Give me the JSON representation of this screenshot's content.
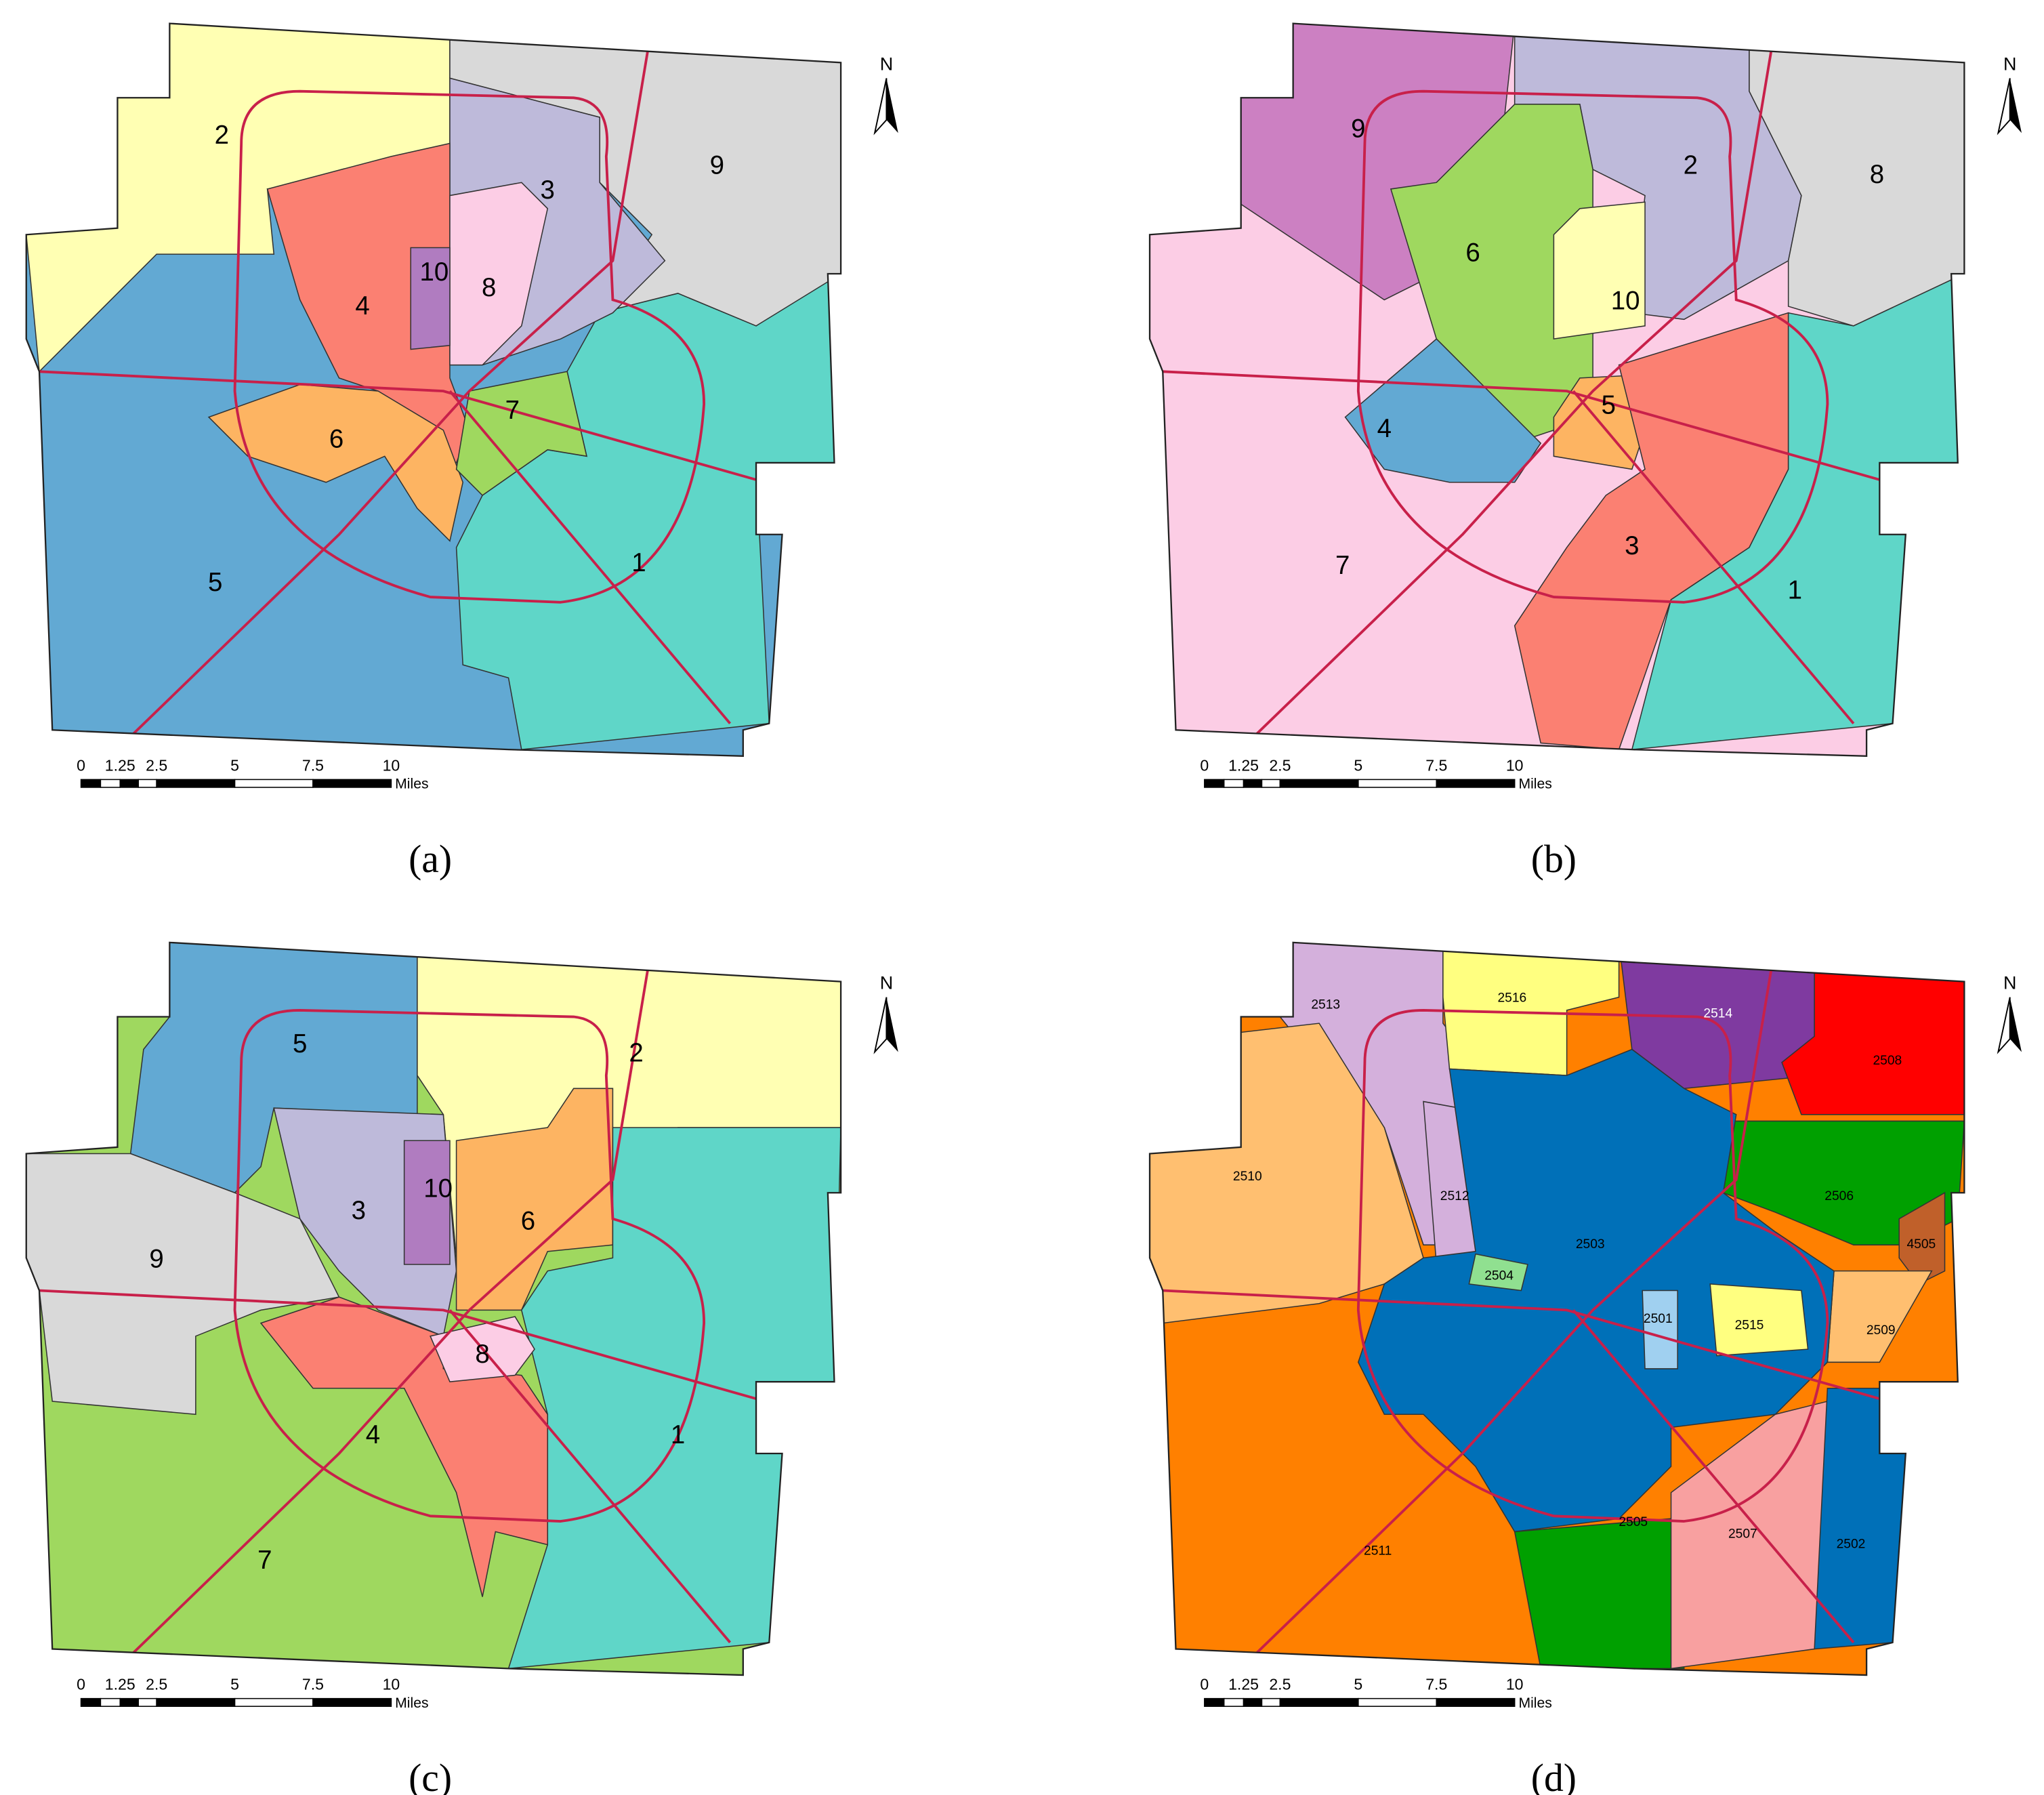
{
  "panels": [
    {
      "caption": "(a)",
      "north": "N",
      "scale_labels": [
        "0",
        "1.25",
        "2.5",
        "5",
        "7.5",
        "10"
      ],
      "scale_unit": "Miles",
      "regions": [
        {
          "label": "5",
          "color": "#62a9d3"
        },
        {
          "label": "1",
          "color": "#5fd6c8"
        },
        {
          "label": "2",
          "color": "#ffffb3"
        },
        {
          "label": "9",
          "color": "#d9d9d9"
        },
        {
          "label": "3",
          "color": "#bebada"
        },
        {
          "label": "4",
          "color": "#fb8072"
        },
        {
          "label": "6",
          "color": "#fdb462"
        },
        {
          "label": "7",
          "color": "#9fd85f"
        },
        {
          "label": "8",
          "color": "#fccde5"
        },
        {
          "label": "10",
          "color": "#b07cc0"
        }
      ]
    },
    {
      "caption": "(b)",
      "north": "N",
      "scale_labels": [
        "0",
        "1.25",
        "2.5",
        "5",
        "7.5",
        "10"
      ],
      "scale_unit": "Miles",
      "regions": [
        {
          "label": "7",
          "color": "#fccde5"
        },
        {
          "label": "9",
          "color": "#cc80c2"
        },
        {
          "label": "2",
          "color": "#bebada"
        },
        {
          "label": "8",
          "color": "#d9d9d9"
        },
        {
          "label": "6",
          "color": "#9fd85f"
        },
        {
          "label": "10",
          "color": "#ffffb3"
        },
        {
          "label": "5",
          "color": "#fdb462"
        },
        {
          "label": "4",
          "color": "#62a9d3"
        },
        {
          "label": "3",
          "color": "#fb8072"
        },
        {
          "label": "1",
          "color": "#5fd6c8"
        }
      ]
    },
    {
      "caption": "(c)",
      "north": "N",
      "scale_labels": [
        "0",
        "1.25",
        "2.5",
        "5",
        "7.5",
        "10"
      ],
      "scale_unit": "Miles",
      "regions": [
        {
          "label": "7",
          "color": "#9fd85f"
        },
        {
          "label": "5",
          "color": "#62a9d3"
        },
        {
          "label": "2",
          "color": "#ffffb3"
        },
        {
          "label": "3",
          "color": "#bebada"
        },
        {
          "label": "6",
          "color": "#fdb462"
        },
        {
          "label": "1",
          "color": "#5fd6c8"
        },
        {
          "label": "9",
          "color": "#d9d9d9"
        },
        {
          "label": "4",
          "color": "#fb8072"
        },
        {
          "label": "8",
          "color": "#fccde5"
        },
        {
          "label": "10",
          "color": "#b07cc0"
        }
      ]
    },
    {
      "caption": "(d)",
      "north": "N",
      "scale_labels": [
        "0",
        "1.25",
        "2.5",
        "5",
        "7.5",
        "10"
      ],
      "scale_unit": "Miles",
      "regions": [
        {
          "label": "2511",
          "color": "#ff8000"
        },
        {
          "label": "2513",
          "color": "#d4b0dc"
        },
        {
          "label": "2516",
          "color": "#ffff80"
        },
        {
          "label": "2514",
          "color": "#7f3aa0"
        },
        {
          "label": "2508",
          "color": "#ff0000"
        },
        {
          "label": "2506",
          "color": "#00a000"
        },
        {
          "label": "4505",
          "color": "#c0602a"
        },
        {
          "label": "2509",
          "color": "#ffbf70"
        },
        {
          "label": "2510",
          "color": "#ffbf70"
        },
        {
          "label": "2512",
          "color": "#d4b0dc"
        },
        {
          "label": "2503",
          "color": "#0070b8"
        },
        {
          "label": "2504",
          "color": "#90e090"
        },
        {
          "label": "2501",
          "color": "#a0d0f0"
        },
        {
          "label": "2515",
          "color": "#ffff80"
        },
        {
          "label": "2505",
          "color": "#00a000"
        },
        {
          "label": "2507",
          "color": "#f8a0a0"
        },
        {
          "label": "2502",
          "color": "#0070b8"
        }
      ]
    }
  ]
}
